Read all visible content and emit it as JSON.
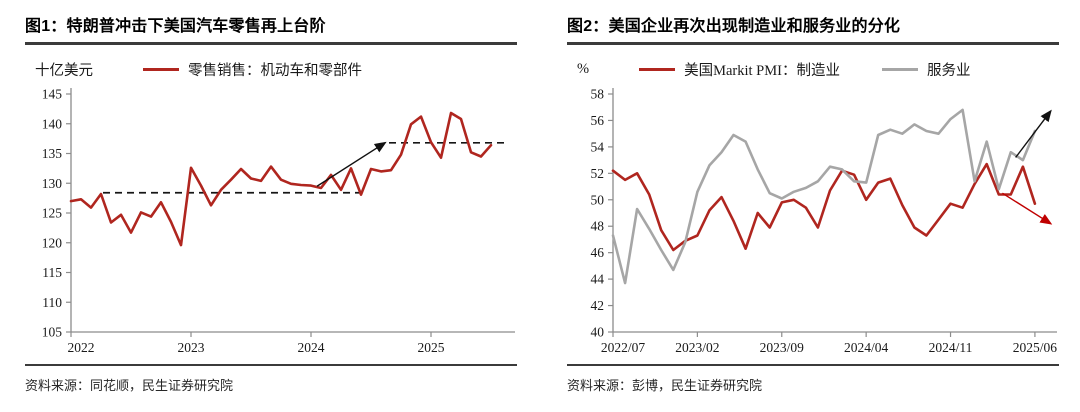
{
  "chart_data": [
    {
      "type": "line",
      "title": "图1：特朗普冲击下美国汽车零售再上台阶",
      "unit": "十亿美元",
      "source": "资料来源：同花顺，民生证券研究院",
      "x_start": "2022-01",
      "freq": "monthly",
      "x_tick_labels": [
        "2022",
        "2023",
        "2024",
        "2025"
      ],
      "x_tick_months": [
        0,
        12,
        24,
        36
      ],
      "x_total_months": 44,
      "ylim": [
        105,
        145
      ],
      "y_step": 5,
      "grid": false,
      "legend_position": "top",
      "series": [
        {
          "name": "零售销售：机动车和零部件",
          "color": "#b0261f",
          "values": [
            127.0,
            127.3,
            125.9,
            128.2,
            123.4,
            124.7,
            121.7,
            125.1,
            124.4,
            126.8,
            123.5,
            119.6,
            132.6,
            129.6,
            126.3,
            128.9,
            130.6,
            132.4,
            130.8,
            130.4,
            132.8,
            130.6,
            129.9,
            129.7,
            129.6,
            129.2,
            131.4,
            128.9,
            132.5,
            128.1,
            132.4,
            132.0,
            132.2,
            134.8,
            139.9,
            141.2,
            136.9,
            134.3,
            141.8,
            140.8,
            135.2,
            134.5,
            136.4
          ]
        }
      ],
      "dashed_lines": [
        {
          "value": 128.4,
          "from_month": 3.2,
          "to_month": 29.0
        },
        {
          "value": 136.8,
          "from_month": 31.8,
          "to_month": 43.8
        }
      ],
      "arrows": [
        {
          "color": "#111111",
          "from": [
            24.6,
            129.5
          ],
          "to": [
            31.4,
            136.8
          ]
        }
      ]
    },
    {
      "type": "line",
      "title": "图2：美国企业再次出现制造业和服务业的分化",
      "unit": "%",
      "source": "资料来源：彭博，民生证券研究院",
      "x_start": "2022-07",
      "freq": "monthly",
      "x_tick_labels": [
        "2022/07",
        "2023/02",
        "2023/09",
        "2024/04",
        "2024/11",
        "2025/06"
      ],
      "x_tick_months": [
        0,
        7,
        14,
        21,
        28,
        35
      ],
      "x_total_months": 36.5,
      "ylim": [
        40,
        58
      ],
      "y_step": 2,
      "grid": false,
      "legend_position": "top",
      "series": [
        {
          "name": "美国Markit PMI：制造业",
          "color": "#b0261f",
          "values": [
            52.2,
            51.5,
            52.0,
            50.4,
            47.7,
            46.2,
            46.9,
            47.3,
            49.2,
            50.2,
            48.4,
            46.3,
            49.0,
            47.9,
            49.8,
            50.0,
            49.4,
            47.9,
            50.7,
            52.2,
            51.9,
            50.0,
            51.3,
            51.6,
            49.6,
            47.9,
            47.3,
            48.5,
            49.7,
            49.4,
            51.2,
            52.7,
            50.4,
            50.4,
            52.5,
            49.7
          ]
        },
        {
          "name": "服务业",
          "color": "#a6a6a6",
          "values": [
            47.3,
            43.7,
            49.3,
            47.8,
            46.2,
            44.7,
            46.8,
            50.6,
            52.6,
            53.6,
            54.9,
            54.4,
            52.3,
            50.5,
            50.1,
            50.6,
            50.9,
            51.4,
            52.5,
            52.3,
            51.4,
            51.3,
            54.9,
            55.3,
            55.0,
            55.7,
            55.2,
            55.0,
            56.1,
            56.8,
            51.4,
            54.4,
            50.8,
            53.6,
            53.0,
            55.2
          ]
        }
      ],
      "dashed_lines": [],
      "arrows": [
        {
          "color": "#111111",
          "from": [
            33.4,
            53.2
          ],
          "to": [
            36.3,
            56.7
          ]
        },
        {
          "color": "#c00000",
          "from": [
            32.3,
            50.5
          ],
          "to": [
            36.3,
            48.2
          ]
        }
      ]
    }
  ],
  "style_colors": {
    "accent_red": "#b0261f",
    "series_gray": "#a6a6a6",
    "rule_dark": "#3b3b3b",
    "dashed_black": "#111111"
  }
}
